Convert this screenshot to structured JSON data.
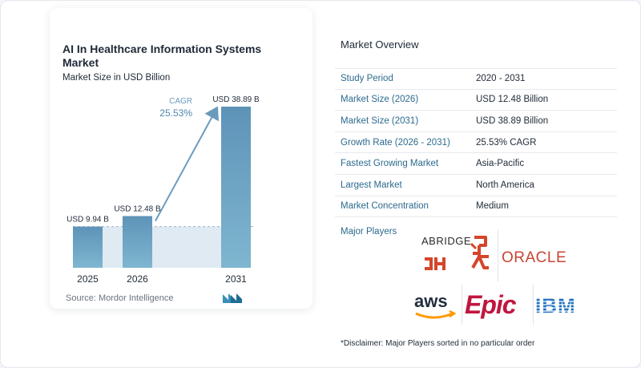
{
  "chart_data": {
    "type": "bar",
    "title": "AI In Healthcare Information Systems Market",
    "subtitle": "Market Size in USD Billion",
    "categories": [
      "2025",
      "2026",
      "2031"
    ],
    "values": [
      9.94,
      12.48,
      38.89
    ],
    "data_labels": [
      "USD 9.94 B",
      "USD 12.48 B",
      "USD 38.89 B"
    ],
    "annotation": {
      "label": "CAGR",
      "value": "25.53%"
    },
    "ylim": [
      0,
      38.89
    ],
    "grid": false,
    "colors": {
      "bar": "#5e93b8",
      "bar_light": "#7fb6d0",
      "arrow": "#6a9bbd",
      "band": "#dfeaf2"
    }
  },
  "source": "Source:  Mordor Intelligence",
  "overview": {
    "title": "Market Overview",
    "rows": [
      {
        "label": "Study Period",
        "value": "2020 - 2031"
      },
      {
        "label": "Market Size (2026)",
        "value": "USD 12.48 Billion"
      },
      {
        "label": "Market Size (2031)",
        "value": "USD 38.89 Billion"
      },
      {
        "label": "Growth Rate (2026 - 2031)",
        "value": "25.53% CAGR"
      },
      {
        "label": "Fastest Growing Market",
        "value": "Asia-Pacific"
      },
      {
        "label": "Largest Market",
        "value": "North America"
      },
      {
        "label": "Market Concentration",
        "value": "Medium"
      }
    ],
    "players_label": "Major Players",
    "players": [
      {
        "name": "ABRIDGE",
        "color": "#2b2b2b"
      },
      {
        "name": "HUMAN FIGURE",
        "color": "#d4462a"
      },
      {
        "name": "ORACLE",
        "color": "#c74634"
      },
      {
        "name": "aws",
        "color": "#232f3e"
      },
      {
        "name": "Epic",
        "color": "#c0163e"
      },
      {
        "name": "IBM",
        "color": "#1f70c1"
      }
    ],
    "disclaimer": "*Disclaimer: Major Players sorted in no particular order"
  }
}
